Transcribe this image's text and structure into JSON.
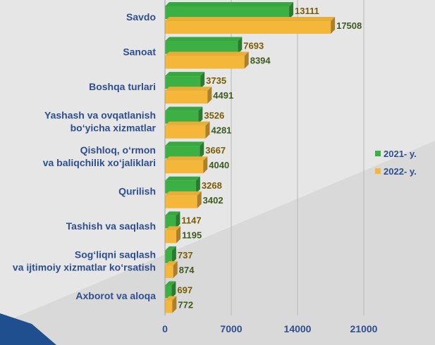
{
  "chart_data": {
    "type": "bar",
    "orientation": "horizontal",
    "categories": [
      "Savdo",
      "Sanoat",
      "Boshqa turlari",
      "Yashash va ovqatlanish\nbo‘yicha xizmatlar",
      "Qishloq, o‘rmon\nva baliqchilik xo‘jaliklari",
      "Qurilish",
      "Tashish va saqlash",
      "Sog‘liqni saqlash\nva ijtimoiy xizmatlar ko‘rsatish",
      "Axborot va aloqa"
    ],
    "series": [
      {
        "name": "2021- y.",
        "color": "#3cb043",
        "label_color": "#7a5c00",
        "values": [
          13111,
          7693,
          3735,
          3526,
          3667,
          3268,
          1147,
          737,
          697
        ]
      },
      {
        "name": "2022- y.",
        "color": "#f5b73a",
        "label_color": "#3e5a1e",
        "values": [
          17508,
          8394,
          4491,
          4281,
          4040,
          3402,
          1195,
          874,
          772
        ]
      }
    ],
    "xlim": [
      0,
      21000
    ],
    "xticks": [
      0,
      7000,
      14000,
      21000
    ],
    "grid": true,
    "legend_position": "right",
    "category_label_color": "#2e4e8f",
    "tick_label_color": "#2e4e8f"
  }
}
